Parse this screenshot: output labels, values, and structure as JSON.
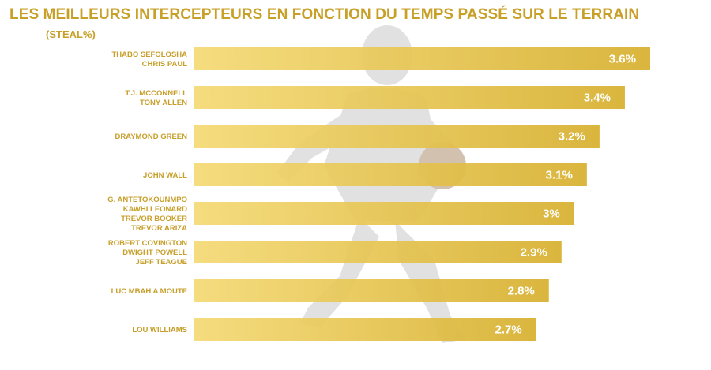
{
  "title": "LES MEILLEURS INTERCEPTEURS EN FONCTION DU TEMPS PASSÉ SUR LE TERRAIN",
  "subtitle": "(STEAL%)",
  "colors": {
    "accent": "#c8a028",
    "bar_light": "#f1d46a",
    "bar_dark": "#d9b33a"
  },
  "chart_data": {
    "type": "bar",
    "orientation": "horizontal",
    "title": "LES MEILLEURS INTERCEPTEURS EN FONCTION DU TEMPS PASSÉ SUR LE TERRAIN",
    "subtitle": "(STEAL%)",
    "unit": "%",
    "categories": [
      [
        "THABO SEFOLOSHA",
        "CHRIS PAUL"
      ],
      [
        "T.J. MCCONNELL",
        "TONY ALLEN"
      ],
      [
        "DRAYMOND GREEN"
      ],
      [
        "JOHN WALL"
      ],
      [
        "G. ANTETOKOUNMPO",
        "KAWHI LEONARD",
        "TREVOR BOOKER",
        "TREVOR ARIZA"
      ],
      [
        "ROBERT COVINGTON",
        "DWIGHT POWELL",
        "JEFF TEAGUE"
      ],
      [
        "LUC MBAH A MOUTE"
      ],
      [
        "LOU WILLIAMS"
      ]
    ],
    "values": [
      3.6,
      3.4,
      3.2,
      3.1,
      3.0,
      2.9,
      2.8,
      2.7
    ],
    "value_labels": [
      "3.6%",
      "3.4%",
      "3.2%",
      "3.1%",
      "3%",
      "2.9%",
      "2.8%",
      "2.7%"
    ],
    "xlim": [
      0,
      3.6
    ],
    "grid": false,
    "legend": "none"
  }
}
